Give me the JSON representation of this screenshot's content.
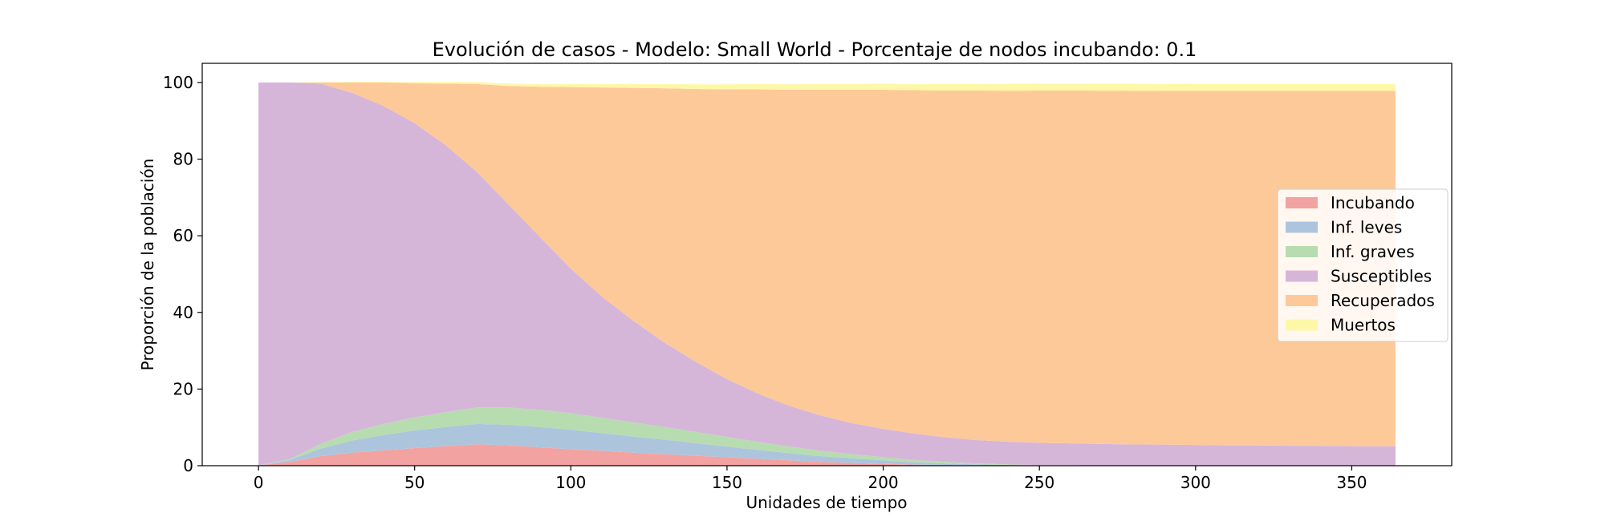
{
  "chart_data": {
    "type": "area",
    "stacked": true,
    "title": "Evolución de casos - Modelo: Small World - Porcentaje de nodos incubando: 0.1",
    "xlabel": "Unidades de tiempo",
    "ylabel": "Proporción de la población",
    "xlim": [
      -18,
      382
    ],
    "ylim": [
      0,
      105
    ],
    "xticks": [
      0,
      50,
      100,
      150,
      200,
      250,
      300,
      350
    ],
    "yticks": [
      0,
      20,
      40,
      60,
      80,
      100
    ],
    "legend_position": "center-right",
    "x": [
      0,
      10,
      20,
      30,
      40,
      50,
      60,
      70,
      80,
      90,
      100,
      110,
      120,
      130,
      140,
      150,
      160,
      170,
      180,
      190,
      200,
      210,
      220,
      230,
      240,
      250,
      260,
      270,
      280,
      290,
      300,
      310,
      320,
      330,
      340,
      350,
      364
    ],
    "series": [
      {
        "name": "Incubando",
        "color": "#f2a3a1",
        "values": [
          0.1,
          1.0,
          2.5,
          3.4,
          4.0,
          4.6,
          5.1,
          5.6,
          5.3,
          4.8,
          4.3,
          3.9,
          3.4,
          3.0,
          2.6,
          2.2,
          1.8,
          1.4,
          1.0,
          0.7,
          0.5,
          0.3,
          0.2,
          0.1,
          0.05,
          0.03,
          0.02,
          0.01,
          0,
          0,
          0,
          0,
          0,
          0,
          0,
          0,
          0
        ]
      },
      {
        "name": "Inf. leves",
        "color": "#acc5dd",
        "values": [
          0,
          0.5,
          2.0,
          3.2,
          4.0,
          4.6,
          5.0,
          5.3,
          5.4,
          5.3,
          5.1,
          4.6,
          4.2,
          3.8,
          3.3,
          2.8,
          2.3,
          1.9,
          1.5,
          1.2,
          0.9,
          0.6,
          0.4,
          0.25,
          0.15,
          0.08,
          0.05,
          0.03,
          0.02,
          0.01,
          0,
          0,
          0,
          0,
          0,
          0,
          0
        ]
      },
      {
        "name": "Inf. graves",
        "color": "#b7dcb0",
        "values": [
          0,
          0.2,
          1.2,
          2.2,
          2.9,
          3.4,
          3.9,
          4.3,
          4.5,
          4.5,
          4.3,
          4.0,
          3.7,
          3.3,
          2.9,
          2.5,
          2.1,
          1.7,
          1.4,
          1.1,
          0.8,
          0.6,
          0.4,
          0.25,
          0.15,
          0.08,
          0.05,
          0.03,
          0.02,
          0.01,
          0,
          0,
          0,
          0,
          0,
          0,
          0
        ]
      },
      {
        "name": "Susceptibles",
        "color": "#d5b6d9",
        "values": [
          99.9,
          98.3,
          94.0,
          88.5,
          83.0,
          76.8,
          69.6,
          61.4,
          53.0,
          45.2,
          37.7,
          31.6,
          26.5,
          22.0,
          18.3,
          15.1,
          12.6,
          10.6,
          9.2,
          8.1,
          7.4,
          6.9,
          6.4,
          6.1,
          5.9,
          5.8,
          5.7,
          5.6,
          5.5,
          5.5,
          5.4,
          5.3,
          5.3,
          5.2,
          5.2,
          5.1,
          5.1
        ]
      },
      {
        "name": "Recuperados",
        "color": "#fec999",
        "values": [
          0,
          0,
          0.3,
          2.7,
          6.1,
          10.4,
          16.1,
          23.0,
          30.9,
          39.1,
          47.4,
          54.6,
          60.8,
          66.4,
          71.2,
          75.6,
          79.4,
          82.5,
          85.0,
          87.0,
          88.5,
          89.6,
          90.5,
          91.2,
          91.6,
          91.9,
          92.1,
          92.2,
          92.3,
          92.3,
          92.4,
          92.5,
          92.5,
          92.6,
          92.6,
          92.7,
          92.7
        ]
      },
      {
        "name": "Muertos",
        "color": "#fdf8a8",
        "values": [
          0,
          0,
          0.1,
          0.2,
          0.2,
          0.3,
          0.4,
          0.5,
          0.6,
          0.7,
          0.8,
          0.9,
          1.0,
          1.1,
          1.2,
          1.3,
          1.4,
          1.4,
          1.5,
          1.5,
          1.6,
          1.6,
          1.7,
          1.7,
          1.8,
          1.8,
          1.8,
          1.8,
          1.8,
          1.8,
          1.8,
          1.8,
          1.8,
          1.8,
          1.8,
          1.8,
          1.8
        ]
      }
    ]
  }
}
